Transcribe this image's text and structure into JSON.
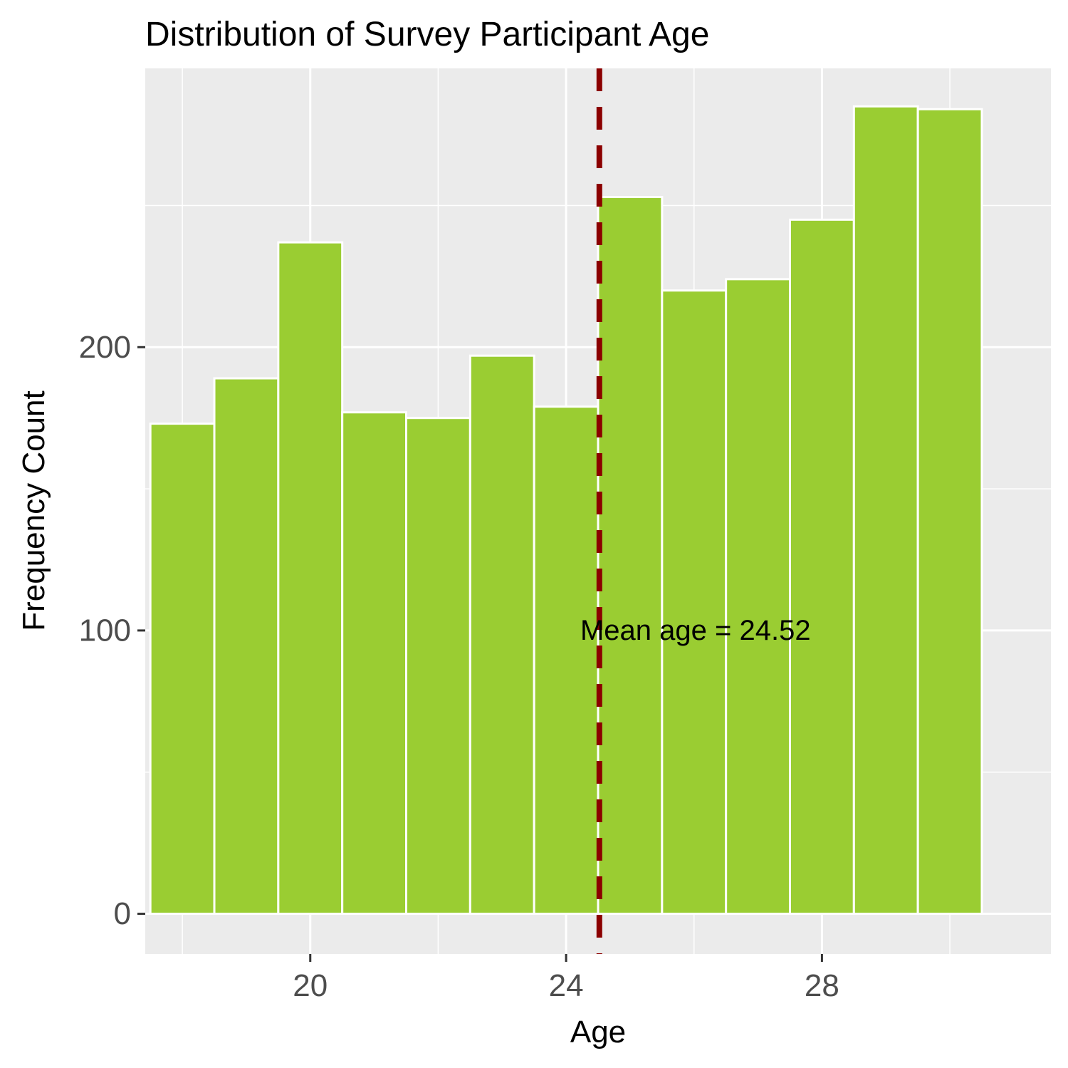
{
  "chart_data": {
    "type": "bar",
    "title": "Distribution of Survey Participant Age",
    "xlabel": "Age",
    "ylabel": "Frequency Count",
    "xlim": [
      17.42,
      31.58
    ],
    "ylim": [
      -14.2,
      298.4
    ],
    "x_ticks": [
      20,
      24,
      28
    ],
    "y_ticks": [
      0,
      100,
      200
    ],
    "x_minor_ticks": [
      18,
      22,
      26,
      30
    ],
    "y_minor_ticks": [
      50,
      150,
      250
    ],
    "grid": true,
    "legend": "none",
    "bin_width": 1,
    "x": [
      18,
      19,
      20,
      21,
      22,
      23,
      24,
      25,
      26,
      27,
      28,
      29,
      30
    ],
    "values": [
      173,
      189,
      237,
      177,
      175,
      197,
      179,
      253,
      220,
      224,
      245,
      285,
      284
    ],
    "mean": 24.52,
    "annotation": "Mean age = 24.52",
    "annotation_y": 100,
    "colors": {
      "bar_fill": "#9acd32",
      "bar_outline": "#ffffff",
      "panel_background": "#ebebeb",
      "grid": "#ffffff",
      "mean_line": "#8b0000",
      "tick_label": "#4d4d4d"
    }
  }
}
